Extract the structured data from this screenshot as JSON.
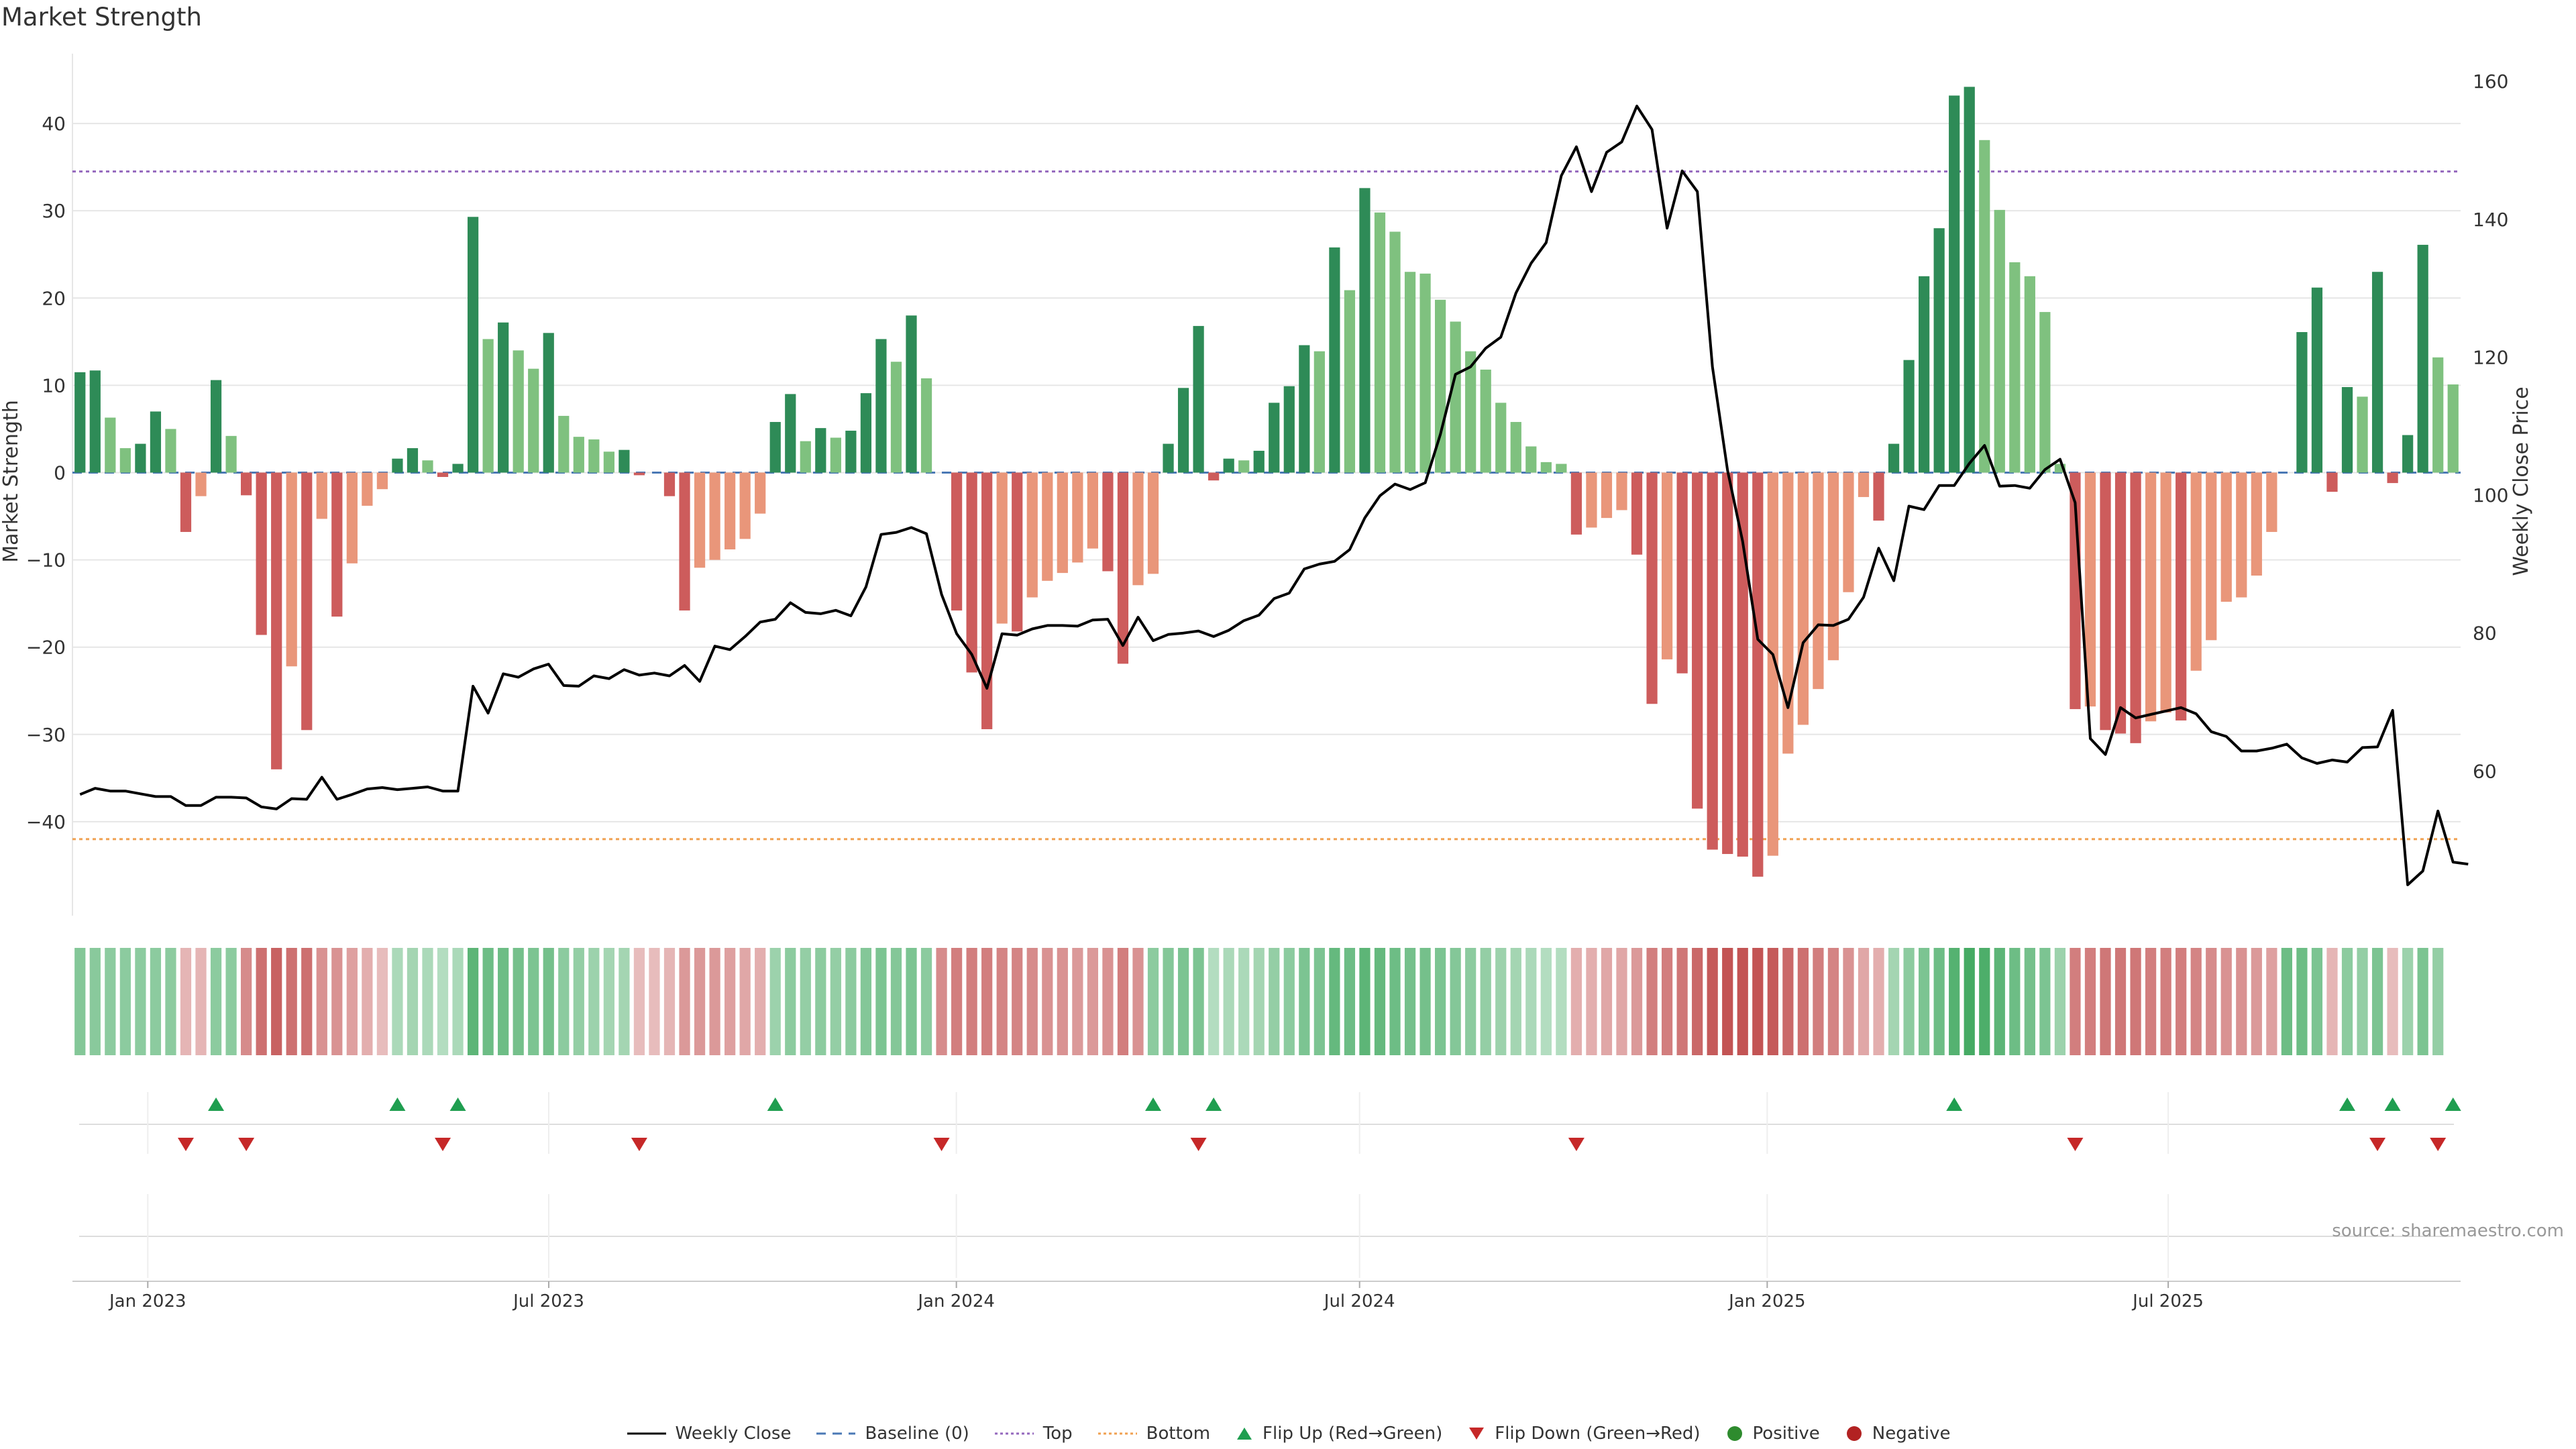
{
  "title": "Market Strength",
  "source": "source: sharemaestro.com",
  "colors": {
    "pos_strong": "#2e8b57",
    "pos_weak": "#7fc17f",
    "neg_strong": "#cd5c5c",
    "neg_weak": "#e9967a",
    "close_line": "#000000",
    "baseline": "#4a78b5",
    "top": "#9467bd",
    "bottom": "#f0a050",
    "flip_up": "#1f9e50",
    "flip_down": "#c62828",
    "positive": "#2e8b2e",
    "negative": "#b22222"
  },
  "legend": [
    {
      "label": "Weekly Close",
      "kind": "line",
      "color": "#000000"
    },
    {
      "label": "Baseline (0)",
      "kind": "dash",
      "color": "#4a78b5"
    },
    {
      "label": "Top",
      "kind": "dot",
      "color": "#9467bd"
    },
    {
      "label": "Bottom",
      "kind": "dot",
      "color": "#f0a050"
    },
    {
      "label": "Flip Up (Red→Green)",
      "kind": "tri-up",
      "color": "#1f9e50"
    },
    {
      "label": "Flip Down (Green→Red)",
      "kind": "tri-down",
      "color": "#c62828"
    },
    {
      "label": "Positive",
      "kind": "circle",
      "color": "#2e8b2e"
    },
    {
      "label": "Negative",
      "kind": "circle",
      "color": "#b22222"
    }
  ],
  "chart_data": {
    "type": "bar",
    "title": "Market Strength",
    "ylabel": "Market Strength",
    "y2label": "Weekly Close Price",
    "ylim": [
      -50,
      48
    ],
    "y2lim": [
      40,
      164
    ],
    "yticks": [
      -40,
      -30,
      -20,
      -10,
      0,
      10,
      20,
      30,
      40
    ],
    "y2ticks": [
      60,
      80,
      100,
      120,
      140,
      160
    ],
    "top_line": 34.5,
    "bottom_line": -42,
    "baseline": 0,
    "grid": true,
    "legend_position": "bottom-center",
    "x_start": "2022-11-28",
    "x_end": "2025-11-10",
    "xticks": [
      {
        "date": "2023-01-01",
        "label": "Jan 2023"
      },
      {
        "date": "2023-07-01",
        "label": "Jul 2023"
      },
      {
        "date": "2024-01-01",
        "label": "Jan 2024"
      },
      {
        "date": "2024-07-01",
        "label": "Jul 2024"
      },
      {
        "date": "2025-01-01",
        "label": "Jan 2025"
      },
      {
        "date": "2025-07-01",
        "label": "Jul 2025"
      }
    ],
    "strength": [
      11.5,
      11.7,
      6.3,
      2.8,
      3.3,
      7.0,
      5.0,
      -6.8,
      -2.7,
      10.6,
      4.2,
      -2.6,
      -18.6,
      -34.0,
      -22.2,
      -29.5,
      -5.3,
      -16.5,
      -10.4,
      -3.8,
      -1.9,
      1.6,
      2.8,
      1.4,
      -0.5,
      1.0,
      29.3,
      15.3,
      17.2,
      14.0,
      11.9,
      16.0,
      6.5,
      4.1,
      3.8,
      2.4,
      2.6,
      -0.3,
      0,
      -2.7,
      -15.8,
      -10.9,
      -10.0,
      -8.8,
      -7.6,
      -4.7,
      5.8,
      9.0,
      3.6,
      5.1,
      4.0,
      4.8,
      9.1,
      15.3,
      12.7,
      18.0,
      10.8,
      0,
      -15.8,
      -22.9,
      -29.4,
      -17.3,
      -18.2,
      -14.3,
      -12.4,
      -11.5,
      -10.3,
      -8.7,
      -11.3,
      -21.9,
      -12.9,
      -11.6,
      3.3,
      9.7,
      16.8,
      -0.9,
      1.6,
      1.4,
      2.5,
      8.0,
      9.9,
      14.6,
      13.9,
      25.8,
      20.9,
      32.6,
      29.8,
      27.6,
      23.0,
      22.8,
      19.8,
      17.3,
      13.9,
      11.8,
      8.0,
      5.8,
      3.0,
      1.2,
      1.0,
      -7.1,
      -6.3,
      -5.2,
      -4.3,
      -9.4,
      -26.5,
      -21.4,
      -23.0,
      -38.5,
      -43.2,
      -43.7,
      -44.0,
      -46.3,
      -43.9,
      -32.2,
      -28.9,
      -24.8,
      -21.5,
      -13.7,
      -2.8,
      -5.5,
      3.3,
      12.9,
      22.5,
      28.0,
      43.2,
      44.2,
      38.1,
      30.1,
      24.1,
      22.5,
      18.4,
      1.0,
      -27.1,
      -26.8,
      -29.5,
      -29.9,
      -31.0,
      -28.5,
      -27.5,
      -28.4,
      -22.7,
      -19.2,
      -14.8,
      -14.3,
      -11.8,
      -6.8,
      0,
      16.1,
      21.2,
      -2.2,
      9.8,
      8.7,
      23.0,
      -1.2,
      4.3,
      26.1,
      13.2,
      10.1
    ],
    "close": [
      56.6,
      57.5,
      57.1,
      57.1,
      56.7,
      56.3,
      56.3,
      55.0,
      55.0,
      56.2,
      56.2,
      56.1,
      54.8,
      54.5,
      56.0,
      55.9,
      59.1,
      55.9,
      56.6,
      57.4,
      57.6,
      57.3,
      57.5,
      57.7,
      57.1,
      57.1,
      72.3,
      68.4,
      74.1,
      73.6,
      74.8,
      75.5,
      72.4,
      72.3,
      73.8,
      73.4,
      74.7,
      73.9,
      74.2,
      73.8,
      75.3,
      73.0,
      78.1,
      77.6,
      79.5,
      81.6,
      82.0,
      84.4,
      83.0,
      82.8,
      83.3,
      82.5,
      86.7,
      94.3,
      94.6,
      95.3,
      94.4,
      85.6,
      79.9,
      76.9,
      72.0,
      79.9,
      79.7,
      80.6,
      81.1,
      81.1,
      81.0,
      81.9,
      82.0,
      78.2,
      82.3,
      78.9,
      79.8,
      80.0,
      80.3,
      79.5,
      80.4,
      81.8,
      82.6,
      85.0,
      85.8,
      89.3,
      90.0,
      90.4,
      92.1,
      96.7,
      99.9,
      101.6,
      100.8,
      101.8,
      108.8,
      117.5,
      118.6,
      121.3,
      122.9,
      129.3,
      133.6,
      136.6,
      146.3,
      150.5,
      144.0,
      149.7,
      151.2,
      156.4,
      153.0,
      138.7,
      147.0,
      144.0,
      118.6,
      103.6,
      93.3,
      79.1,
      76.9,
      69.2,
      78.6,
      81.2,
      81.1,
      82.0,
      85.2,
      92.3,
      87.6,
      98.4,
      97.9,
      101.4,
      101.4,
      104.6,
      107.2,
      101.3,
      101.4,
      101.0,
      103.7,
      105.2,
      98.9,
      64.7,
      62.4,
      69.2,
      67.7,
      68.2,
      68.7,
      69.2,
      68.3,
      65.7,
      65.0,
      62.9,
      62.9,
      63.3,
      63.9,
      61.9,
      61.1,
      61.6,
      61.3,
      63.4,
      63.5,
      68.8,
      43.5,
      45.5,
      54.2,
      46.8,
      46.5
    ],
    "heat_strip": [
      0.45,
      0.42,
      0.4,
      0.4,
      0.4,
      0.4,
      0.4,
      -0.2,
      -0.2,
      0.4,
      0.4,
      -0.5,
      -0.7,
      -0.8,
      -0.7,
      -0.7,
      -0.45,
      -0.45,
      -0.35,
      -0.25,
      -0.15,
      0.2,
      0.25,
      0.2,
      0.15,
      0.2,
      0.7,
      0.6,
      0.6,
      0.55,
      0.5,
      0.55,
      0.4,
      0.35,
      0.3,
      0.25,
      0.25,
      -0.15,
      -0.15,
      -0.2,
      -0.4,
      -0.4,
      -0.4,
      -0.35,
      -0.3,
      -0.25,
      0.3,
      0.4,
      0.35,
      0.4,
      0.35,
      0.4,
      0.45,
      0.5,
      0.45,
      0.5,
      0.4,
      -0.5,
      -0.6,
      -0.6,
      -0.6,
      -0.55,
      -0.55,
      -0.5,
      -0.45,
      -0.45,
      -0.4,
      -0.4,
      -0.45,
      -0.6,
      -0.45,
      0.4,
      0.45,
      0.5,
      0.5,
      0.15,
      0.2,
      0.2,
      0.25,
      0.35,
      0.4,
      0.5,
      0.5,
      0.65,
      0.6,
      0.7,
      0.65,
      0.6,
      0.55,
      0.55,
      0.5,
      0.45,
      0.4,
      0.35,
      0.3,
      0.25,
      0.2,
      0.15,
      0.15,
      -0.25,
      -0.25,
      -0.3,
      -0.3,
      -0.4,
      -0.6,
      -0.6,
      -0.65,
      -0.75,
      -0.85,
      -0.9,
      -0.9,
      -0.9,
      -0.85,
      -0.75,
      -0.7,
      -0.6,
      -0.55,
      -0.45,
      -0.3,
      -0.25,
      0.25,
      0.4,
      0.5,
      0.6,
      0.75,
      0.85,
      0.8,
      0.7,
      0.6,
      0.55,
      0.5,
      0.3,
      -0.6,
      -0.6,
      -0.65,
      -0.65,
      -0.65,
      -0.6,
      -0.6,
      -0.6,
      -0.55,
      -0.5,
      -0.45,
      -0.45,
      -0.4,
      -0.35,
      0.6,
      0.6,
      0.5,
      -0.2,
      0.4,
      0.35,
      0.5,
      -0.15,
      0.3,
      0.5,
      0.35
    ],
    "flip_up_weeks": [
      9,
      21,
      25,
      46,
      71,
      75,
      124,
      150,
      153,
      157
    ],
    "flip_down_weeks": [
      7,
      11,
      24,
      37,
      57,
      74,
      99,
      132,
      152,
      156
    ]
  }
}
